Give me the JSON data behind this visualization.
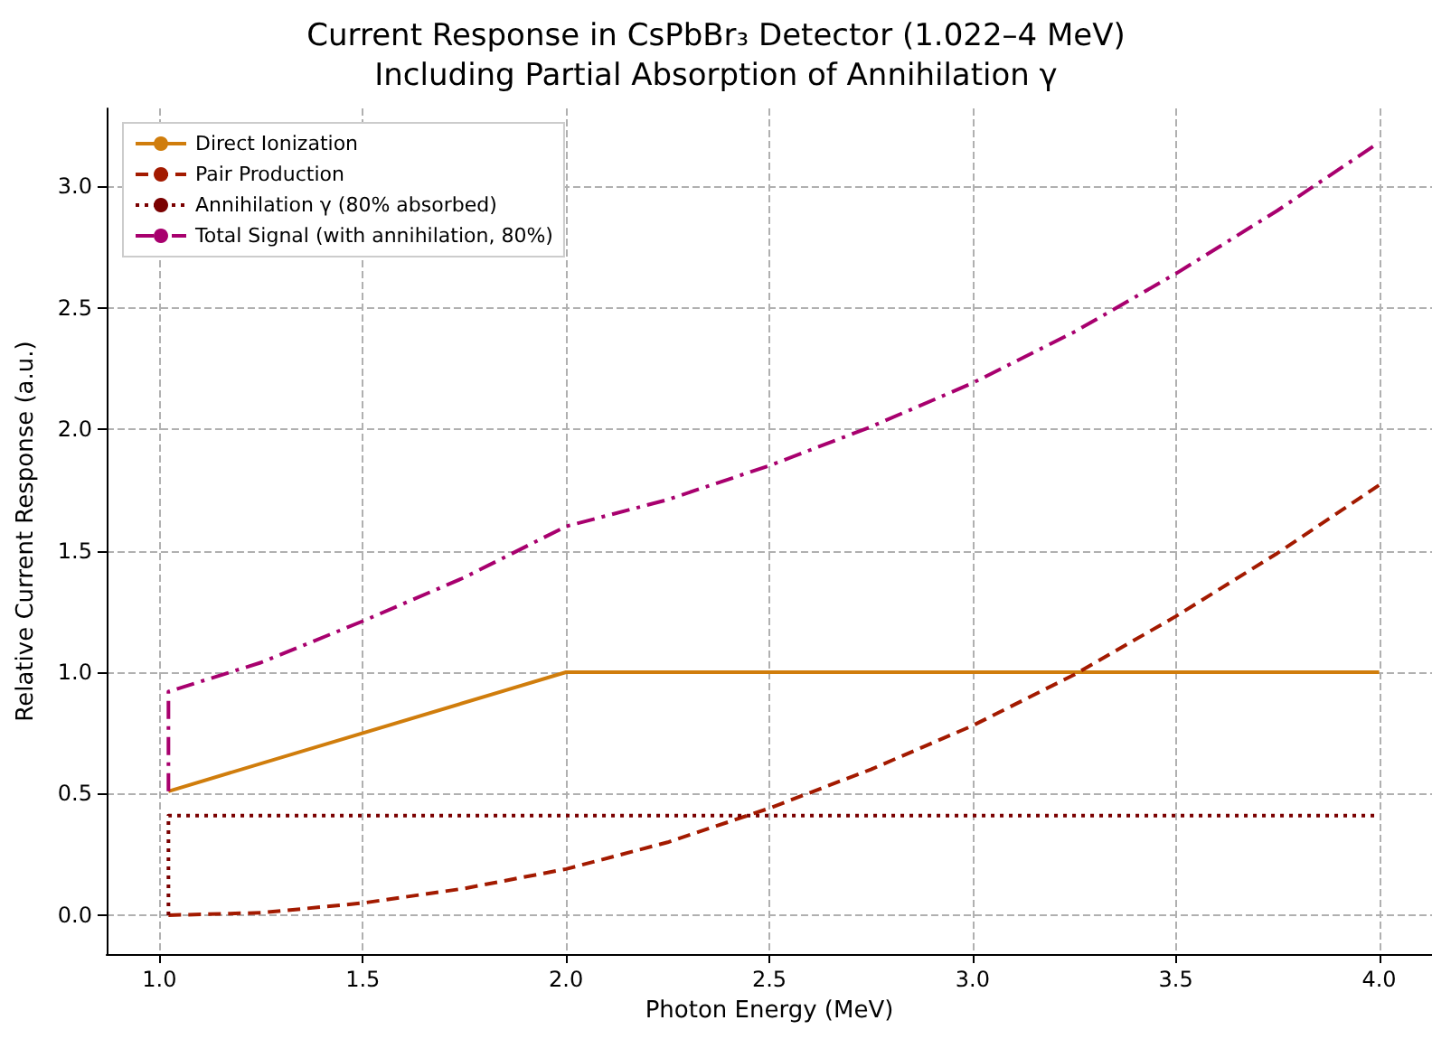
{
  "chart_data": {
    "type": "line",
    "title": "Current Response in CsPbBr₃ Detector (1.022–4 MeV)\nIncluding Partial Absorption of Annihilation γ",
    "xlabel": "Photon Energy (MeV)",
    "ylabel": "Relative Current Response (a.u.)",
    "xlim": [
      0.87,
      4.13
    ],
    "ylim": [
      -0.16,
      3.32
    ],
    "xticks": [
      {
        "value": 1,
        "label": "1.0"
      },
      {
        "value": 1.5,
        "label": "1.5"
      },
      {
        "value": 2,
        "label": "2.0"
      },
      {
        "value": 2.5,
        "label": "2.5"
      },
      {
        "value": 3,
        "label": "3.0"
      },
      {
        "value": 3.5,
        "label": "3.5"
      },
      {
        "value": 4,
        "label": "4.0"
      }
    ],
    "yticks": [
      {
        "value": 0,
        "label": "0.0"
      },
      {
        "value": 0.5,
        "label": "0.5"
      },
      {
        "value": 1,
        "label": "1.0"
      },
      {
        "value": 1.5,
        "label": "1.5"
      },
      {
        "value": 2,
        "label": "2.0"
      },
      {
        "value": 2.5,
        "label": "2.5"
      },
      {
        "value": 3,
        "label": "3.0"
      }
    ],
    "grid": true,
    "legend": "top left",
    "marker": "none",
    "series": [
      {
        "name": "Direct Ionization",
        "color": "#d07d0c",
        "line_style": "solid",
        "x": [
          1.022,
          2,
          4
        ],
        "values": [
          0.51,
          1.0,
          1.0
        ]
      },
      {
        "name": "Pair Production",
        "color": "#a31a00",
        "line_style": "dashed",
        "x": [
          1.022,
          1.25,
          1.5,
          1.75,
          2,
          2.25,
          2.5,
          2.75,
          3,
          3.25,
          3.5,
          3.75,
          4
        ],
        "values": [
          0,
          0.01,
          0.05,
          0.11,
          0.19,
          0.3,
          0.44,
          0.6,
          0.78,
          0.99,
          1.23,
          1.49,
          1.77
        ]
      },
      {
        "name": "Annihilation γ (80% absorbed)",
        "color": "#7a0000",
        "line_style": "dotted",
        "x": [
          1.022,
          1.022,
          4
        ],
        "values": [
          0,
          0.41,
          0.41
        ]
      },
      {
        "name": "Total Signal (with annihilation, 80%)",
        "color": "#a8006e",
        "line_style": "dashdot",
        "x": [
          1.022,
          1.022,
          1.25,
          1.5,
          1.75,
          2,
          2.25,
          2.5,
          2.75,
          3,
          3.25,
          3.5,
          3.75,
          4
        ],
        "values": [
          0.51,
          0.92,
          1.04,
          1.21,
          1.39,
          1.6,
          1.71,
          1.85,
          2.01,
          2.19,
          2.4,
          2.64,
          2.9,
          3.18
        ]
      }
    ]
  }
}
